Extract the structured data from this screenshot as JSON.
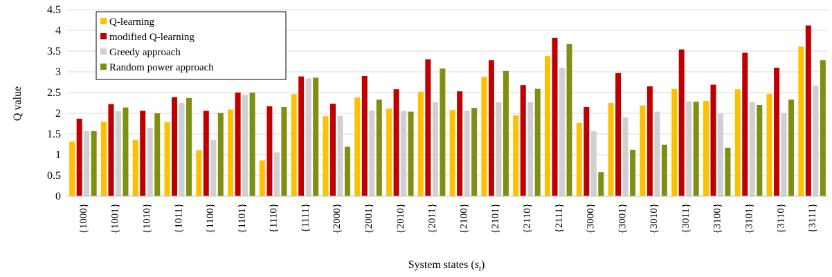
{
  "chart_data": {
    "type": "bar",
    "xlabel_parts": {
      "main": "System states (",
      "var": "s",
      "sub": "t",
      "close": ")"
    },
    "ylabel": "Q value",
    "ylim": [
      0,
      4.5
    ],
    "yticks": [
      0,
      0.5,
      1,
      1.5,
      2,
      2.5,
      3,
      3.5,
      4,
      4.5
    ],
    "ytick_labels": [
      "0",
      "0.5",
      "1",
      "1.5",
      "2",
      "2.5",
      "3",
      "3.5",
      "4",
      "4.5"
    ],
    "grid": true,
    "legend_position": "top-left",
    "categories": [
      "{1000}",
      "{1001}",
      "{1010}",
      "{1011}",
      "{1100}",
      "{1101}",
      "{1110}",
      "{1111}",
      "{2000}",
      "{2001}",
      "{2010}",
      "{2011}",
      "{2100}",
      "{2101}",
      "{2110}",
      "{2111}",
      "{3000}",
      "{3001}",
      "{3010}",
      "{3011}",
      "{3100}",
      "{3101}",
      "{3110}",
      "{3111}"
    ],
    "series": [
      {
        "name": "Q-learning",
        "color": "#FFC000",
        "values": [
          1.32,
          1.8,
          1.36,
          1.79,
          1.11,
          2.09,
          0.86,
          2.46,
          1.93,
          2.38,
          2.11,
          2.52,
          2.08,
          2.88,
          1.95,
          3.38,
          1.77,
          2.25,
          2.19,
          2.59,
          2.3,
          2.58,
          2.47,
          3.61
        ]
      },
      {
        "name": "modified Q-learning",
        "color": "#C00000",
        "values": [
          1.87,
          2.22,
          2.06,
          2.39,
          2.06,
          2.5,
          2.17,
          2.89,
          2.23,
          2.9,
          2.58,
          3.3,
          2.53,
          3.28,
          2.68,
          3.82,
          2.15,
          2.97,
          2.65,
          3.54,
          2.69,
          3.46,
          3.1,
          4.12
        ]
      },
      {
        "name": "Greedy approach",
        "color": "#D0D0D0",
        "values": [
          1.57,
          2.05,
          1.65,
          2.25,
          1.35,
          2.44,
          1.06,
          2.84,
          1.94,
          2.07,
          2.06,
          2.27,
          2.06,
          2.27,
          2.27,
          3.1,
          1.57,
          1.9,
          2.04,
          2.29,
          1.99,
          2.27,
          2.01,
          2.67
        ]
      },
      {
        "name": "Random power approach",
        "color": "#7F8F12",
        "values": [
          1.57,
          2.14,
          2.0,
          2.37,
          2.01,
          2.5,
          2.15,
          2.86,
          1.19,
          2.33,
          2.04,
          3.08,
          2.13,
          3.02,
          2.59,
          3.67,
          0.58,
          1.12,
          1.24,
          2.28,
          1.17,
          2.2,
          2.33,
          3.28
        ]
      }
    ]
  }
}
